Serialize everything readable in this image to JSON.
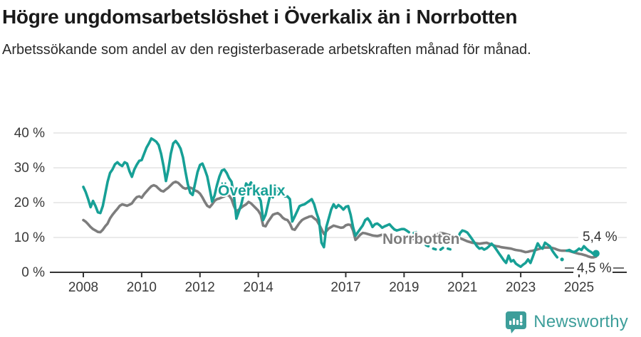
{
  "header": {
    "title": "Högre ungdomsarbetslöshet i Överkalix än i Norrbotten",
    "subtitle": "Arbetssökande som andel av den registerbaserade arbetskraften månad för månad."
  },
  "footer": {
    "brand": "Newsworthy"
  },
  "colors": {
    "overkalix": "#17a096",
    "norrbotten": "#7d7d7d",
    "axis": "#333333",
    "grid": "#dddddd",
    "tick_text": "#3a3a3a",
    "brand": "#3d9e9a"
  },
  "chart_data": {
    "type": "line",
    "title": "Högre ungdomsarbetslöshet i Överkalix än i Norrbotten",
    "subtitle": "Arbetssökande som andel av den registerbaserade arbetskraften månad för månad.",
    "x_start_year": 2008,
    "x_frequency": "monthly",
    "x_tick_years": [
      2008,
      2010,
      2012,
      2014,
      2017,
      2019,
      2021,
      2023,
      2025
    ],
    "x_tick_labels": [
      "2008",
      "2010",
      "2012",
      "2014",
      "2017",
      "2019",
      "2021",
      "2023",
      "2025"
    ],
    "ylim": [
      0,
      40
    ],
    "y_ticks": [
      0,
      10,
      20,
      30,
      40
    ],
    "y_tick_labels": [
      "0 %",
      "10 %",
      "20 %",
      "30 %",
      "40 %"
    ],
    "grid": "horizontal",
    "legend_position": "inline-labels",
    "series": [
      {
        "name": "Norrbotten",
        "color": "#7d7d7d",
        "end_label": "4,5 %",
        "end_value": 4.5,
        "end_dot": false,
        "values": [
          15.0,
          14.5,
          13.8,
          13.0,
          12.4,
          12.0,
          11.6,
          11.5,
          12.2,
          13.2,
          14.0,
          15.5,
          16.5,
          17.4,
          18.2,
          19.1,
          19.5,
          19.3,
          19.1,
          19.4,
          19.8,
          20.8,
          21.6,
          21.8,
          21.4,
          22.4,
          23.2,
          24.0,
          24.7,
          25.0,
          24.7,
          24.0,
          23.4,
          23.2,
          23.8,
          24.3,
          25.0,
          25.7,
          26.0,
          25.7,
          25.0,
          24.3,
          24.0,
          24.2,
          24.3,
          24.0,
          23.5,
          23.2,
          22.6,
          21.5,
          20.2,
          19.1,
          18.7,
          19.5,
          20.5,
          21.0,
          21.2,
          21.5,
          21.8,
          22.2,
          22.0,
          21.0,
          19.0,
          17.5,
          18.0,
          18.6,
          19.1,
          19.5,
          20.2,
          19.8,
          19.1,
          18.4,
          17.7,
          16.5,
          13.4,
          13.2,
          14.5,
          15.5,
          16.5,
          16.8,
          17.0,
          16.5,
          15.7,
          15.2,
          15.0,
          14.0,
          12.4,
          12.2,
          13.2,
          14.2,
          15.0,
          15.4,
          15.7,
          16.0,
          16.1,
          15.5,
          15.0,
          13.8,
          12.4,
          11.0,
          11.8,
          12.6,
          13.0,
          13.4,
          13.2,
          13.0,
          12.8,
          12.9,
          13.5,
          13.7,
          13.6,
          12.0,
          9.3,
          10.0,
          10.8,
          11.3,
          11.2,
          11.0,
          10.8,
          10.6,
          10.5,
          10.4,
          10.6,
          10.8,
          10.5,
          10.2,
          10.0,
          10.2,
          9.9,
          9.8,
          10.0,
          10.2,
          10.3,
          10.2,
          10.0,
          9.7,
          9.5,
          9.4,
          9.5,
          9.7,
          9.8,
          9.9,
          10.0,
          10.2,
          10.4,
          10.6,
          11.0,
          11.3,
          11.2,
          11.0,
          10.8,
          10.6,
          10.4,
          10.2,
          10.0,
          9.8,
          9.5,
          9.2,
          8.9,
          8.7,
          8.5,
          8.4,
          8.3,
          8.2,
          8.3,
          8.4,
          8.5,
          8.2,
          7.9,
          7.7,
          7.5,
          7.4,
          7.2,
          7.1,
          7.0,
          6.9,
          6.8,
          6.6,
          6.4,
          6.3,
          6.2,
          6.0,
          5.8,
          5.9,
          6.1,
          6.2,
          6.4,
          6.6,
          6.8,
          7.0,
          7.1,
          7.1,
          7.1,
          7.0,
          6.8,
          6.5,
          6.3,
          6.2,
          6.2,
          6.2,
          6.1,
          5.9,
          5.7,
          5.5,
          5.3,
          5.2,
          5.0,
          4.8,
          4.5,
          4.3,
          4.3,
          4.5
        ]
      },
      {
        "name": "Överkalix",
        "color": "#17a096",
        "end_label": "5,4 %",
        "end_value": 5.4,
        "end_dot": true,
        "values": [
          24.5,
          23.0,
          21.0,
          18.7,
          20.5,
          19.0,
          17.2,
          17.0,
          19.0,
          22.5,
          26.0,
          28.5,
          29.5,
          31.0,
          31.6,
          30.9,
          30.5,
          31.6,
          31.2,
          29.0,
          27.4,
          29.5,
          30.9,
          32.0,
          32.2,
          34.0,
          35.8,
          37.0,
          38.4,
          38.0,
          37.5,
          36.5,
          34.0,
          30.5,
          26.2,
          29.5,
          34.0,
          37.0,
          37.7,
          36.8,
          35.5,
          33.0,
          29.0,
          25.3,
          22.8,
          22.2,
          25.5,
          28.8,
          30.8,
          31.2,
          29.5,
          27.5,
          24.0,
          20.3,
          22.0,
          25.0,
          27.5,
          29.2,
          29.5,
          28.5,
          27.0,
          26.0,
          22.0,
          15.4,
          17.5,
          19.5,
          22.5,
          25.5,
          24.5,
          25.8,
          24.5,
          23.0,
          22.0,
          20.5,
          15.0,
          16.5,
          19.5,
          22.5,
          21.5,
          24.3,
          23.5,
          23.0,
          22.3,
          21.8,
          21.8,
          21.0,
          14.6,
          16.0,
          17.5,
          19.0,
          19.3,
          19.5,
          20.0,
          20.5,
          21.0,
          19.5,
          17.0,
          15.0,
          8.5,
          7.2,
          13.0,
          15.5,
          18.0,
          19.5,
          18.5,
          19.3,
          18.8,
          18.0,
          18.8,
          19.0,
          16.5,
          13.0,
          10.5,
          11.5,
          12.5,
          13.5,
          15.0,
          15.5,
          14.5,
          13.0,
          13.8,
          14.0,
          13.5,
          12.8,
          13.2,
          13.5,
          13.8,
          13.0,
          12.3,
          12.0,
          12.2,
          12.4,
          12.4,
          12.0,
          11.5,
          null,
          11.3,
          11.5,
          null,
          null,
          null,
          7.8,
          7.5,
          null,
          6.8,
          6.6,
          null,
          6.5,
          7.0,
          null,
          6.8,
          6.6,
          null,
          null,
          9.5,
          11.2,
          12.0,
          11.8,
          11.4,
          10.5,
          9.5,
          8.5,
          7.5,
          6.8,
          7.0,
          6.5,
          6.9,
          7.5,
          8.2,
          7.5,
          6.5,
          5.5,
          4.5,
          3.5,
          2.7,
          4.8,
          3.1,
          3.5,
          2.5,
          2.0,
          1.6,
          2.2,
          2.7,
          3.7,
          2.7,
          4.5,
          6.5,
          8.3,
          7.2,
          6.8,
          8.5,
          8.0,
          7.5,
          6.2,
          5.2,
          4.3,
          null,
          3.7,
          null,
          6.2,
          6.4,
          6.0,
          5.8,
          6.2,
          6.8,
          6.4,
          7.5,
          6.8,
          6.2,
          5.8,
          5.2,
          5.4
        ]
      }
    ]
  }
}
